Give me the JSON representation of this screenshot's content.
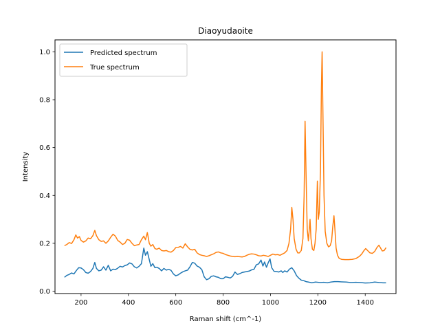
{
  "chart_data": {
    "type": "line",
    "title": "Diaoyudaoite",
    "xlabel": "Raman shift (cm^-1)",
    "ylabel": "Intensity",
    "xlim": [
      90,
      1530
    ],
    "ylim": [
      -0.01,
      1.05
    ],
    "xticks": [
      200,
      400,
      600,
      800,
      1000,
      1200,
      1400
    ],
    "yticks": [
      0.0,
      0.2,
      0.4,
      0.6,
      0.8,
      1.0
    ],
    "xtick_labels": [
      "200",
      "400",
      "600",
      "800",
      "1000",
      "1200",
      "1400"
    ],
    "ytick_labels": [
      "0.0",
      "0.2",
      "0.4",
      "0.6",
      "0.8",
      "1.0"
    ],
    "grid": false,
    "legend_position": "top-left",
    "series": [
      {
        "name": "Predicted spectrum",
        "color": "#1f77b4",
        "points": [
          [
            130,
            0.058
          ],
          [
            140,
            0.066
          ],
          [
            150,
            0.07
          ],
          [
            160,
            0.076
          ],
          [
            170,
            0.072
          ],
          [
            180,
            0.086
          ],
          [
            190,
            0.098
          ],
          [
            200,
            0.097
          ],
          [
            210,
            0.09
          ],
          [
            220,
            0.078
          ],
          [
            230,
            0.075
          ],
          [
            240,
            0.082
          ],
          [
            250,
            0.095
          ],
          [
            258,
            0.12
          ],
          [
            265,
            0.095
          ],
          [
            275,
            0.085
          ],
          [
            285,
            0.088
          ],
          [
            295,
            0.102
          ],
          [
            305,
            0.088
          ],
          [
            315,
            0.108
          ],
          [
            325,
            0.085
          ],
          [
            335,
            0.092
          ],
          [
            345,
            0.09
          ],
          [
            355,
            0.096
          ],
          [
            365,
            0.104
          ],
          [
            375,
            0.101
          ],
          [
            385,
            0.107
          ],
          [
            395,
            0.11
          ],
          [
            405,
            0.118
          ],
          [
            415,
            0.114
          ],
          [
            425,
            0.102
          ],
          [
            435,
            0.097
          ],
          [
            445,
            0.104
          ],
          [
            455,
            0.115
          ],
          [
            465,
            0.18
          ],
          [
            472,
            0.15
          ],
          [
            480,
            0.165
          ],
          [
            488,
            0.132
          ],
          [
            495,
            0.104
          ],
          [
            503,
            0.115
          ],
          [
            512,
            0.098
          ],
          [
            520,
            0.1
          ],
          [
            530,
            0.095
          ],
          [
            540,
            0.085
          ],
          [
            550,
            0.095
          ],
          [
            560,
            0.088
          ],
          [
            570,
            0.091
          ],
          [
            580,
            0.087
          ],
          [
            590,
            0.072
          ],
          [
            600,
            0.064
          ],
          [
            610,
            0.068
          ],
          [
            620,
            0.075
          ],
          [
            630,
            0.081
          ],
          [
            640,
            0.085
          ],
          [
            650,
            0.088
          ],
          [
            660,
            0.102
          ],
          [
            670,
            0.12
          ],
          [
            680,
            0.117
          ],
          [
            690,
            0.105
          ],
          [
            700,
            0.1
          ],
          [
            710,
            0.09
          ],
          [
            720,
            0.06
          ],
          [
            730,
            0.048
          ],
          [
            740,
            0.052
          ],
          [
            750,
            0.062
          ],
          [
            760,
            0.064
          ],
          [
            770,
            0.06
          ],
          [
            780,
            0.058
          ],
          [
            790,
            0.052
          ],
          [
            800,
            0.052
          ],
          [
            810,
            0.06
          ],
          [
            820,
            0.058
          ],
          [
            830,
            0.055
          ],
          [
            840,
            0.062
          ],
          [
            850,
            0.08
          ],
          [
            860,
            0.07
          ],
          [
            870,
            0.073
          ],
          [
            880,
            0.078
          ],
          [
            890,
            0.08
          ],
          [
            900,
            0.082
          ],
          [
            910,
            0.084
          ],
          [
            920,
            0.089
          ],
          [
            930,
            0.091
          ],
          [
            940,
            0.11
          ],
          [
            950,
            0.114
          ],
          [
            960,
            0.13
          ],
          [
            968,
            0.105
          ],
          [
            975,
            0.122
          ],
          [
            983,
            0.1
          ],
          [
            990,
            0.118
          ],
          [
            998,
            0.135
          ],
          [
            1005,
            0.098
          ],
          [
            1015,
            0.083
          ],
          [
            1025,
            0.082
          ],
          [
            1035,
            0.08
          ],
          [
            1045,
            0.085
          ],
          [
            1052,
            0.078
          ],
          [
            1060,
            0.085
          ],
          [
            1070,
            0.08
          ],
          [
            1080,
            0.092
          ],
          [
            1090,
            0.098
          ],
          [
            1100,
            0.085
          ],
          [
            1110,
            0.065
          ],
          [
            1120,
            0.054
          ],
          [
            1130,
            0.046
          ],
          [
            1140,
            0.044
          ],
          [
            1150,
            0.04
          ],
          [
            1160,
            0.038
          ],
          [
            1175,
            0.035
          ],
          [
            1190,
            0.038
          ],
          [
            1210,
            0.036
          ],
          [
            1225,
            0.037
          ],
          [
            1240,
            0.035
          ],
          [
            1255,
            0.038
          ],
          [
            1270,
            0.04
          ],
          [
            1285,
            0.04
          ],
          [
            1300,
            0.039
          ],
          [
            1320,
            0.038
          ],
          [
            1340,
            0.036
          ],
          [
            1360,
            0.037
          ],
          [
            1380,
            0.036
          ],
          [
            1400,
            0.034
          ],
          [
            1420,
            0.035
          ],
          [
            1440,
            0.038
          ],
          [
            1460,
            0.036
          ],
          [
            1475,
            0.035
          ],
          [
            1488,
            0.035
          ]
        ]
      },
      {
        "name": "True spectrum",
        "color": "#ff7f0e",
        "points": [
          [
            130,
            0.19
          ],
          [
            140,
            0.195
          ],
          [
            150,
            0.203
          ],
          [
            160,
            0.199
          ],
          [
            170,
            0.215
          ],
          [
            178,
            0.235
          ],
          [
            185,
            0.222
          ],
          [
            193,
            0.228
          ],
          [
            200,
            0.212
          ],
          [
            210,
            0.205
          ],
          [
            220,
            0.21
          ],
          [
            230,
            0.222
          ],
          [
            240,
            0.219
          ],
          [
            250,
            0.232
          ],
          [
            258,
            0.254
          ],
          [
            265,
            0.232
          ],
          [
            275,
            0.215
          ],
          [
            285,
            0.208
          ],
          [
            295,
            0.21
          ],
          [
            305,
            0.2
          ],
          [
            315,
            0.21
          ],
          [
            325,
            0.225
          ],
          [
            335,
            0.238
          ],
          [
            345,
            0.23
          ],
          [
            355,
            0.212
          ],
          [
            365,
            0.205
          ],
          [
            375,
            0.195
          ],
          [
            385,
            0.2
          ],
          [
            395,
            0.216
          ],
          [
            405,
            0.213
          ],
          [
            415,
            0.2
          ],
          [
            425,
            0.19
          ],
          [
            435,
            0.193
          ],
          [
            445,
            0.195
          ],
          [
            455,
            0.215
          ],
          [
            465,
            0.23
          ],
          [
            472,
            0.215
          ],
          [
            480,
            0.245
          ],
          [
            488,
            0.2
          ],
          [
            495,
            0.188
          ],
          [
            503,
            0.195
          ],
          [
            512,
            0.178
          ],
          [
            520,
            0.175
          ],
          [
            530,
            0.18
          ],
          [
            540,
            0.17
          ],
          [
            550,
            0.168
          ],
          [
            560,
            0.17
          ],
          [
            570,
            0.165
          ],
          [
            580,
            0.163
          ],
          [
            590,
            0.17
          ],
          [
            600,
            0.182
          ],
          [
            610,
            0.183
          ],
          [
            620,
            0.187
          ],
          [
            630,
            0.18
          ],
          [
            640,
            0.198
          ],
          [
            650,
            0.185
          ],
          [
            660,
            0.175
          ],
          [
            670,
            0.172
          ],
          [
            680,
            0.175
          ],
          [
            690,
            0.16
          ],
          [
            700,
            0.153
          ],
          [
            710,
            0.15
          ],
          [
            720,
            0.148
          ],
          [
            730,
            0.145
          ],
          [
            740,
            0.148
          ],
          [
            750,
            0.152
          ],
          [
            760,
            0.156
          ],
          [
            770,
            0.162
          ],
          [
            780,
            0.164
          ],
          [
            790,
            0.16
          ],
          [
            800,
            0.158
          ],
          [
            810,
            0.153
          ],
          [
            820,
            0.15
          ],
          [
            830,
            0.147
          ],
          [
            840,
            0.145
          ],
          [
            850,
            0.144
          ],
          [
            860,
            0.145
          ],
          [
            870,
            0.144
          ],
          [
            880,
            0.143
          ],
          [
            890,
            0.145
          ],
          [
            900,
            0.15
          ],
          [
            910,
            0.154
          ],
          [
            920,
            0.156
          ],
          [
            930,
            0.155
          ],
          [
            940,
            0.152
          ],
          [
            950,
            0.148
          ],
          [
            960,
            0.147
          ],
          [
            970,
            0.15
          ],
          [
            980,
            0.148
          ],
          [
            990,
            0.145
          ],
          [
            1000,
            0.15
          ],
          [
            1010,
            0.155
          ],
          [
            1020,
            0.152
          ],
          [
            1030,
            0.153
          ],
          [
            1040,
            0.15
          ],
          [
            1050,
            0.155
          ],
          [
            1060,
            0.16
          ],
          [
            1070,
            0.17
          ],
          [
            1078,
            0.2
          ],
          [
            1085,
            0.26
          ],
          [
            1090,
            0.35
          ],
          [
            1095,
            0.3
          ],
          [
            1100,
            0.22
          ],
          [
            1108,
            0.175
          ],
          [
            1115,
            0.16
          ],
          [
            1122,
            0.16
          ],
          [
            1130,
            0.17
          ],
          [
            1137,
            0.22
          ],
          [
            1142,
            0.4
          ],
          [
            1146,
            0.71
          ],
          [
            1150,
            0.5
          ],
          [
            1155,
            0.26
          ],
          [
            1160,
            0.21
          ],
          [
            1164,
            0.26
          ],
          [
            1167,
            0.3
          ],
          [
            1171,
            0.22
          ],
          [
            1177,
            0.175
          ],
          [
            1183,
            0.17
          ],
          [
            1188,
            0.2
          ],
          [
            1193,
            0.26
          ],
          [
            1198,
            0.46
          ],
          [
            1202,
            0.3
          ],
          [
            1206,
            0.33
          ],
          [
            1211,
            0.5
          ],
          [
            1215,
            0.85
          ],
          [
            1218,
            1.0
          ],
          [
            1222,
            0.7
          ],
          [
            1226,
            0.4
          ],
          [
            1231,
            0.25
          ],
          [
            1238,
            0.2
          ],
          [
            1245,
            0.185
          ],
          [
            1252,
            0.19
          ],
          [
            1258,
            0.21
          ],
          [
            1263,
            0.27
          ],
          [
            1268,
            0.315
          ],
          [
            1272,
            0.26
          ],
          [
            1277,
            0.18
          ],
          [
            1283,
            0.15
          ],
          [
            1290,
            0.137
          ],
          [
            1300,
            0.133
          ],
          [
            1315,
            0.132
          ],
          [
            1330,
            0.132
          ],
          [
            1345,
            0.133
          ],
          [
            1360,
            0.136
          ],
          [
            1375,
            0.145
          ],
          [
            1385,
            0.155
          ],
          [
            1395,
            0.17
          ],
          [
            1402,
            0.178
          ],
          [
            1410,
            0.17
          ],
          [
            1420,
            0.16
          ],
          [
            1430,
            0.158
          ],
          [
            1440,
            0.166
          ],
          [
            1450,
            0.183
          ],
          [
            1458,
            0.192
          ],
          [
            1465,
            0.18
          ],
          [
            1472,
            0.168
          ],
          [
            1480,
            0.17
          ],
          [
            1488,
            0.182
          ]
        ]
      }
    ]
  }
}
